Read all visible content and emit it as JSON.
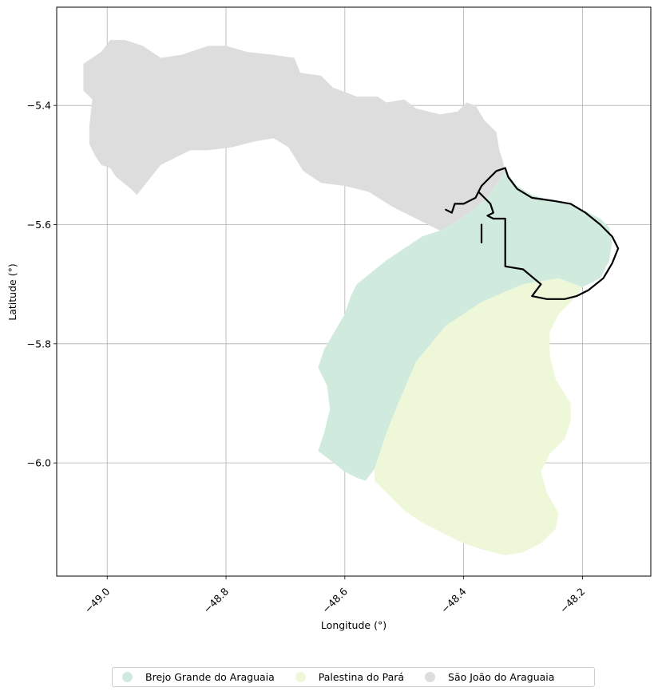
{
  "map": {
    "xlabel": "Longitude (°)",
    "ylabel": "Latitude (°)",
    "x_ticks": [
      "−49.0",
      "−48.8",
      "−48.6",
      "−48.4",
      "−48.2"
    ],
    "y_ticks": [
      "−5.4",
      "−5.6",
      "−5.8",
      "−6.0"
    ],
    "grid": true,
    "legend_placement": "bottom-center"
  },
  "legend": {
    "items": [
      {
        "label": "Brejo Grande do Araguaia",
        "color": "#d0ebde"
      },
      {
        "label": "Palestina do Pará",
        "color": "#eef8d9"
      },
      {
        "label": "São João do Araguaia",
        "color": "#dddddd"
      }
    ]
  },
  "chart_data": {
    "type": "map",
    "xlabel": "Longitude (°)",
    "ylabel": "Latitude (°)",
    "xlim": [
      -49.085,
      -48.085
    ],
    "ylim": [
      -6.19,
      -5.235
    ],
    "x_ticks": [
      -49.0,
      -48.8,
      -48.6,
      -48.4,
      -48.2
    ],
    "y_ticks": [
      -5.4,
      -5.6,
      -5.8,
      -6.0
    ],
    "grid": true,
    "legend_placement": "bottom-center",
    "series": [
      {
        "name": "São João do Araguaia",
        "color": "#dddddd",
        "coords": [
          [
            -49.04,
            -5.33
          ],
          [
            -49.01,
            -5.31
          ],
          [
            -48.995,
            -5.29
          ],
          [
            -48.97,
            -5.29
          ],
          [
            -48.94,
            -5.3
          ],
          [
            -48.91,
            -5.32
          ],
          [
            -48.875,
            -5.315
          ],
          [
            -48.83,
            -5.3
          ],
          [
            -48.8,
            -5.3
          ],
          [
            -48.765,
            -5.31
          ],
          [
            -48.72,
            -5.315
          ],
          [
            -48.685,
            -5.32
          ],
          [
            -48.675,
            -5.345
          ],
          [
            -48.64,
            -5.35
          ],
          [
            -48.62,
            -5.37
          ],
          [
            -48.58,
            -5.385
          ],
          [
            -48.545,
            -5.385
          ],
          [
            -48.53,
            -5.395
          ],
          [
            -48.5,
            -5.39
          ],
          [
            -48.48,
            -5.405
          ],
          [
            -48.44,
            -5.415
          ],
          [
            -48.41,
            -5.41
          ],
          [
            -48.395,
            -5.395
          ],
          [
            -48.38,
            -5.4
          ],
          [
            -48.365,
            -5.425
          ],
          [
            -48.345,
            -5.445
          ],
          [
            -48.34,
            -5.475
          ],
          [
            -48.335,
            -5.49
          ],
          [
            -48.33,
            -5.51
          ],
          [
            -48.34,
            -5.525
          ],
          [
            -48.36,
            -5.555
          ],
          [
            -48.39,
            -5.58
          ],
          [
            -48.42,
            -5.6
          ],
          [
            -48.44,
            -5.61
          ],
          [
            -48.46,
            -5.6
          ],
          [
            -48.49,
            -5.585
          ],
          [
            -48.52,
            -5.57
          ],
          [
            -48.56,
            -5.545
          ],
          [
            -48.6,
            -5.535
          ],
          [
            -48.64,
            -5.53
          ],
          [
            -48.67,
            -5.51
          ],
          [
            -48.695,
            -5.47
          ],
          [
            -48.72,
            -5.455
          ],
          [
            -48.75,
            -5.46
          ],
          [
            -48.79,
            -5.47
          ],
          [
            -48.83,
            -5.475
          ],
          [
            -48.86,
            -5.475
          ],
          [
            -48.91,
            -5.5
          ],
          [
            -48.95,
            -5.55
          ],
          [
            -48.96,
            -5.54
          ],
          [
            -48.985,
            -5.52
          ],
          [
            -48.995,
            -5.505
          ],
          [
            -49.01,
            -5.5
          ],
          [
            -49.02,
            -5.485
          ],
          [
            -49.03,
            -5.465
          ],
          [
            -49.03,
            -5.435
          ],
          [
            -49.025,
            -5.39
          ],
          [
            -49.04,
            -5.375
          ],
          [
            -49.04,
            -5.36
          ]
        ]
      },
      {
        "name": "Brejo Grande do Araguaia",
        "color": "#d0ebde",
        "coords": [
          [
            -48.33,
            -5.51
          ],
          [
            -48.31,
            -5.535
          ],
          [
            -48.285,
            -5.55
          ],
          [
            -48.25,
            -5.56
          ],
          [
            -48.22,
            -5.565
          ],
          [
            -48.2,
            -5.575
          ],
          [
            -48.17,
            -5.59
          ],
          [
            -48.155,
            -5.605
          ],
          [
            -48.15,
            -5.63
          ],
          [
            -48.155,
            -5.66
          ],
          [
            -48.17,
            -5.69
          ],
          [
            -48.2,
            -5.705
          ],
          [
            -48.24,
            -5.69
          ],
          [
            -48.3,
            -5.7
          ],
          [
            -48.37,
            -5.73
          ],
          [
            -48.43,
            -5.77
          ],
          [
            -48.48,
            -5.83
          ],
          [
            -48.51,
            -5.9
          ],
          [
            -48.53,
            -5.95
          ],
          [
            -48.55,
            -6.01
          ],
          [
            -48.565,
            -6.03
          ],
          [
            -48.58,
            -6.025
          ],
          [
            -48.6,
            -6.015
          ],
          [
            -48.625,
            -5.995
          ],
          [
            -48.645,
            -5.98
          ],
          [
            -48.635,
            -5.95
          ],
          [
            -48.625,
            -5.91
          ],
          [
            -48.63,
            -5.87
          ],
          [
            -48.645,
            -5.84
          ],
          [
            -48.635,
            -5.81
          ],
          [
            -48.6,
            -5.75
          ],
          [
            -48.59,
            -5.72
          ],
          [
            -48.58,
            -5.7
          ],
          [
            -48.555,
            -5.68
          ],
          [
            -48.53,
            -5.66
          ],
          [
            -48.5,
            -5.64
          ],
          [
            -48.47,
            -5.62
          ],
          [
            -48.44,
            -5.61
          ],
          [
            -48.42,
            -5.6
          ],
          [
            -48.39,
            -5.58
          ],
          [
            -48.36,
            -5.555
          ],
          [
            -48.34,
            -5.525
          ]
        ]
      },
      {
        "name": "Palestina do Pará",
        "color": "#eef8d9",
        "coords": [
          [
            -48.24,
            -5.69
          ],
          [
            -48.2,
            -5.705
          ],
          [
            -48.22,
            -5.73
          ],
          [
            -48.24,
            -5.75
          ],
          [
            -48.255,
            -5.78
          ],
          [
            -48.255,
            -5.82
          ],
          [
            -48.245,
            -5.86
          ],
          [
            -48.22,
            -5.9
          ],
          [
            -48.22,
            -5.93
          ],
          [
            -48.23,
            -5.96
          ],
          [
            -48.255,
            -5.985
          ],
          [
            -48.27,
            -6.015
          ],
          [
            -48.26,
            -6.05
          ],
          [
            -48.24,
            -6.085
          ],
          [
            -48.245,
            -6.11
          ],
          [
            -48.27,
            -6.135
          ],
          [
            -48.3,
            -6.15
          ],
          [
            -48.33,
            -6.155
          ],
          [
            -48.37,
            -6.145
          ],
          [
            -48.4,
            -6.135
          ],
          [
            -48.43,
            -6.12
          ],
          [
            -48.47,
            -6.1
          ],
          [
            -48.5,
            -6.08
          ],
          [
            -48.52,
            -6.06
          ],
          [
            -48.55,
            -6.03
          ],
          [
            -48.55,
            -6.01
          ],
          [
            -48.53,
            -5.95
          ],
          [
            -48.51,
            -5.9
          ],
          [
            -48.48,
            -5.83
          ],
          [
            -48.43,
            -5.77
          ],
          [
            -48.37,
            -5.73
          ],
          [
            -48.3,
            -5.7
          ]
        ]
      }
    ],
    "outline": {
      "color": "#000000",
      "paths": [
        [
          [
            -48.43,
            -5.575
          ],
          [
            -48.42,
            -5.58
          ],
          [
            -48.415,
            -5.565
          ],
          [
            -48.4,
            -5.565
          ],
          [
            -48.39,
            -5.56
          ],
          [
            -48.38,
            -5.555
          ],
          [
            -48.375,
            -5.545
          ],
          [
            -48.365,
            -5.555
          ],
          [
            -48.355,
            -5.565
          ],
          [
            -48.35,
            -5.58
          ],
          [
            -48.36,
            -5.585
          ],
          [
            -48.35,
            -5.59
          ],
          [
            -48.33,
            -5.59
          ],
          [
            -48.33,
            -5.67
          ],
          [
            -48.3,
            -5.675
          ],
          [
            -48.27,
            -5.7
          ],
          [
            -48.285,
            -5.72
          ],
          [
            -48.26,
            -5.725
          ],
          [
            -48.23,
            -5.725
          ],
          [
            -48.21,
            -5.72
          ],
          [
            -48.19,
            -5.71
          ],
          [
            -48.165,
            -5.69
          ],
          [
            -48.15,
            -5.665
          ],
          [
            -48.14,
            -5.64
          ],
          [
            -48.15,
            -5.62
          ],
          [
            -48.17,
            -5.6
          ],
          [
            -48.195,
            -5.58
          ],
          [
            -48.22,
            -5.565
          ],
          [
            -48.25,
            -5.56
          ],
          [
            -48.285,
            -5.555
          ],
          [
            -48.31,
            -5.54
          ],
          [
            -48.325,
            -5.52
          ],
          [
            -48.33,
            -5.505
          ],
          [
            -48.345,
            -5.51
          ],
          [
            -48.36,
            -5.525
          ],
          [
            -48.37,
            -5.535
          ],
          [
            -48.375,
            -5.545
          ]
        ],
        [
          [
            -48.37,
            -5.6
          ],
          [
            -48.37,
            -5.63
          ]
        ]
      ]
    }
  }
}
